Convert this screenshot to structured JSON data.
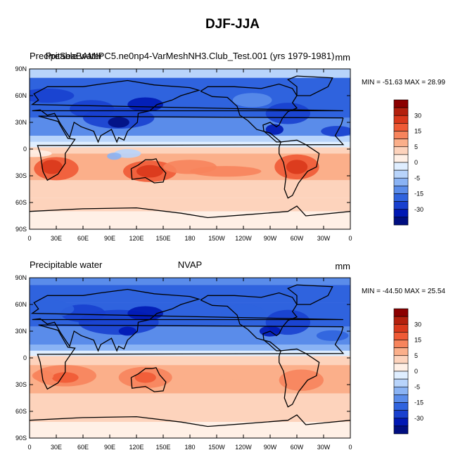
{
  "figure_title": "DJF-JJA",
  "legend_levels": [
    "30",
    "15",
    "5",
    "0",
    "-5",
    "-15",
    "-30"
  ],
  "colors": {
    "levels": [
      "#8b0000",
      "#b3200d",
      "#d9381b",
      "#ef5a35",
      "#f7845c",
      "#fbaf8a",
      "#fdd3bc",
      "#fff0e6",
      "#dfeeff",
      "#b8d4fb",
      "#8ab3f4",
      "#5a8cea",
      "#2f63de",
      "#1840cf",
      "#0018b4",
      "#000e80"
    ]
  },
  "chart_data": [
    {
      "type": "heatmap",
      "left_title": "Precipitable water",
      "center_title": "PreSeaBAMIPC5.ne0np4-VarMeshNH3.Club_Test.001 (yrs 1979-1981)",
      "units": "mm",
      "min_max_label": "MIN = -51.63 MAX =  28.99",
      "min": -51.63,
      "max": 28.99,
      "x_tick_labels": [
        "0",
        "30E",
        "60E",
        "90E",
        "120E",
        "150E",
        "180",
        "150W",
        "120W",
        "90W",
        "60W",
        "30W",
        "0"
      ],
      "y_tick_labels": [
        "90N",
        "60N",
        "30N",
        "0",
        "30S",
        "60S",
        "90S"
      ],
      "colorbar_levels": [
        30,
        15,
        5,
        0,
        -5,
        -15,
        -30
      ]
    },
    {
      "type": "heatmap",
      "left_title": "Precipitable water",
      "center_title": "NVAP",
      "units": "mm",
      "min_max_label": "MIN = -44.50 MAX =  25.54",
      "min": -44.5,
      "max": 25.54,
      "x_tick_labels": [
        "0",
        "30E",
        "60E",
        "90E",
        "120E",
        "150E",
        "180",
        "150W",
        "120W",
        "90W",
        "60W",
        "30W",
        "0"
      ],
      "y_tick_labels": [
        "90N",
        "60N",
        "30N",
        "0",
        "30S",
        "60S",
        "90S"
      ],
      "colorbar_levels": [
        30,
        15,
        5,
        0,
        -5,
        -15,
        -30
      ]
    }
  ]
}
